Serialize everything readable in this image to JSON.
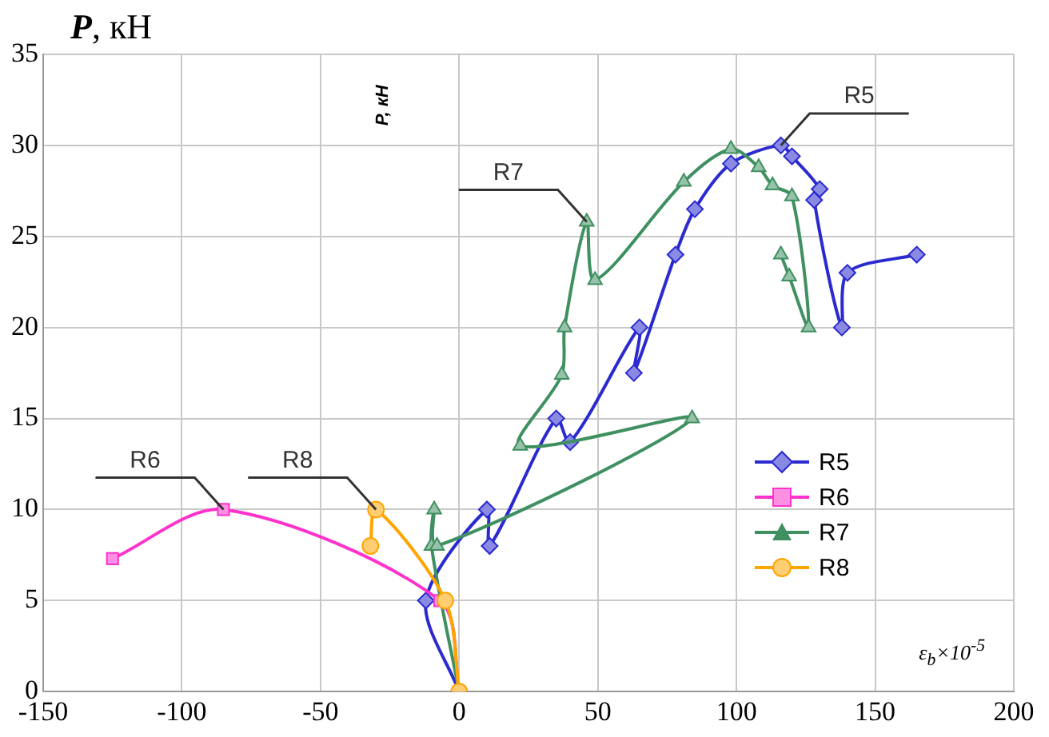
{
  "chart_data": {
    "type": "line",
    "ylabel": "P, кН",
    "xlabel": "ε$_{b}$×10$^{-5}$",
    "xlim": [
      -150,
      200
    ],
    "xticks": [
      -150,
      -100,
      -50,
      0,
      50,
      100,
      150,
      200
    ],
    "ylim": [
      0,
      35
    ],
    "yticks": [
      0,
      5,
      10,
      15,
      20,
      25,
      30,
      35
    ],
    "grid": true,
    "legend": "right",
    "series": [
      {
        "name": "R5",
        "color": "#2a2ad0",
        "marker": "diamond",
        "x": [
          0,
          -12,
          10,
          11,
          35,
          40,
          65,
          63,
          78,
          85,
          98,
          116,
          120,
          130,
          128,
          138,
          140,
          165
        ],
        "values": [
          0,
          5,
          10,
          8,
          15,
          13.7,
          20,
          17.5,
          24,
          26.5,
          29,
          30,
          29.4,
          27.6,
          27,
          20,
          23,
          24
        ]
      },
      {
        "name": "R6",
        "color": "#ff33cc",
        "marker": "square",
        "x": [
          0,
          -7,
          -85,
          -125
        ],
        "values": [
          0,
          5,
          10,
          7.3
        ]
      },
      {
        "name": "R7",
        "color": "#3f9060",
        "marker": "triangle",
        "x": [
          0,
          -10,
          -9,
          -8,
          84,
          22,
          37,
          38,
          46,
          49,
          81,
          98,
          108,
          113,
          120,
          126,
          119,
          116
        ],
        "values": [
          0,
          8,
          10,
          8,
          15,
          13.5,
          17.4,
          20,
          25.8,
          22.6,
          28,
          29.8,
          28.8,
          27.8,
          27.2,
          20,
          22.8,
          24
        ]
      },
      {
        "name": "R8",
        "color": "#ffa500",
        "marker": "circle",
        "x": [
          0,
          -5,
          -30,
          -32
        ],
        "values": [
          0,
          5,
          10,
          8
        ]
      }
    ],
    "annotations": [
      {
        "text": "R5",
        "x": 116,
        "y": 30
      },
      {
        "text": "R6",
        "x": -85,
        "y": 10
      },
      {
        "text": "R7",
        "x": 46,
        "y": 25.8
      },
      {
        "text": "R8",
        "x": -30,
        "y": 10
      },
      "P, кН"
    ]
  }
}
